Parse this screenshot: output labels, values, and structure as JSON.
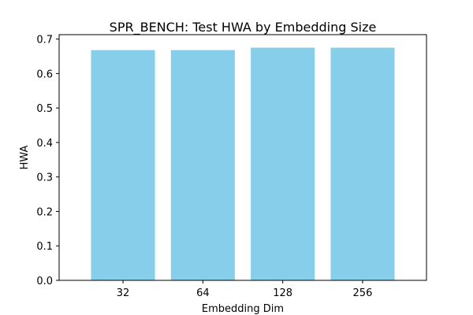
{
  "chart_data": {
    "type": "bar",
    "title": "SPR_BENCH: Test HWA by Embedding Size",
    "xlabel": "Embedding Dim",
    "ylabel": "HWA",
    "categories": [
      "32",
      "64",
      "128",
      "256"
    ],
    "values": [
      0.668,
      0.668,
      0.675,
      0.675
    ],
    "ylim": [
      0,
      0.7128
    ],
    "yticks": [
      "0.0",
      "0.1",
      "0.2",
      "0.3",
      "0.4",
      "0.5",
      "0.6",
      "0.7"
    ],
    "bar_color": "#87ceeb",
    "grid": false,
    "legend": "none"
  }
}
